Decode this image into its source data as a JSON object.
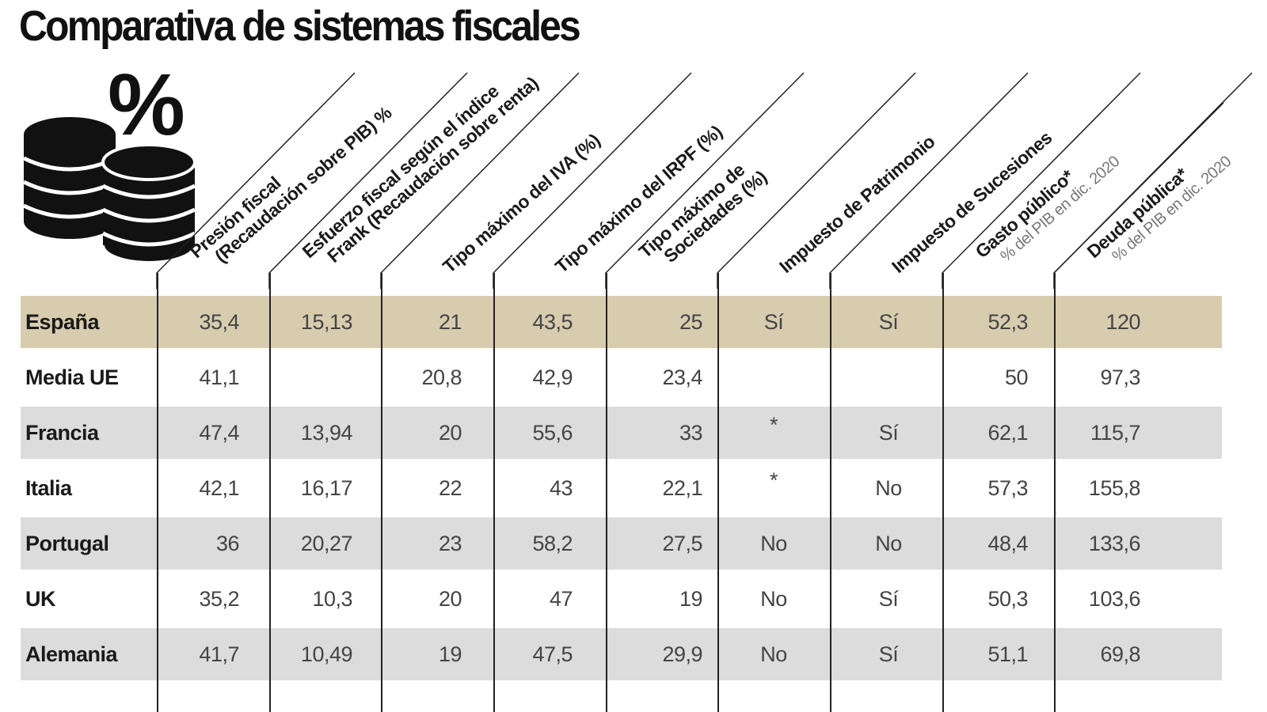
{
  "title": "Comparativa de sistemas fiscales",
  "icon": {
    "name": "coins-percent-icon",
    "glyph": "%"
  },
  "colors": {
    "highlight_row": "#d8ccaf",
    "alt_row": "#dcdcdd"
  },
  "chart_data": {
    "type": "table",
    "title": "Comparativa de sistemas fiscales",
    "columns": [
      {
        "label": "Presión fiscal",
        "label2": "(Recaudación sobre PIB) %"
      },
      {
        "label": "Esfuerzo fiscal según el índice",
        "label2": "Frank (Recaudación sobre renta)"
      },
      {
        "label": "Tipo máximo del IVA (%)"
      },
      {
        "label": "Tipo máximo del IRPF  (%)"
      },
      {
        "label": "Tipo máximo de",
        "label2": "Sociedades (%)"
      },
      {
        "label": "Impuesto de Patrimonio"
      },
      {
        "label": "Impuesto de Sucesiones"
      },
      {
        "label": "Gasto público*",
        "sub": "% del PIB en dic. 2020"
      },
      {
        "label": "Deuda pública*",
        "sub": "% del PIB en dic. 2020"
      }
    ],
    "rows": [
      {
        "country": "España",
        "values": [
          "35,4",
          "15,13",
          "21",
          "43,5",
          "25",
          "Sí",
          "Sí",
          "52,3",
          "120"
        ]
      },
      {
        "country": "Media UE",
        "values": [
          "41,1",
          "",
          "20,8",
          "42,9",
          "23,4",
          "",
          "",
          "50",
          "97,3"
        ]
      },
      {
        "country": "Francia",
        "values": [
          "47,4",
          "13,94",
          "20",
          "55,6",
          "33",
          "*",
          "Sí",
          "62,1",
          "115,7"
        ]
      },
      {
        "country": "Italia",
        "values": [
          "42,1",
          "16,17",
          "22",
          "43",
          "22,1",
          "*",
          "No",
          "57,3",
          "155,8"
        ]
      },
      {
        "country": "Portugal",
        "values": [
          "36",
          "20,27",
          "23",
          "58,2",
          "27,5",
          "No",
          "No",
          "48,4",
          "133,6"
        ]
      },
      {
        "country": "UK",
        "values": [
          "35,2",
          "10,3",
          "20",
          "47",
          "19",
          "No",
          "Sí",
          "50,3",
          "103,6"
        ]
      },
      {
        "country": "Alemania",
        "values": [
          "41,7",
          "10,49",
          "19",
          "47,5",
          "29,9",
          "No",
          "Sí",
          "51,1",
          "69,8"
        ]
      }
    ]
  }
}
